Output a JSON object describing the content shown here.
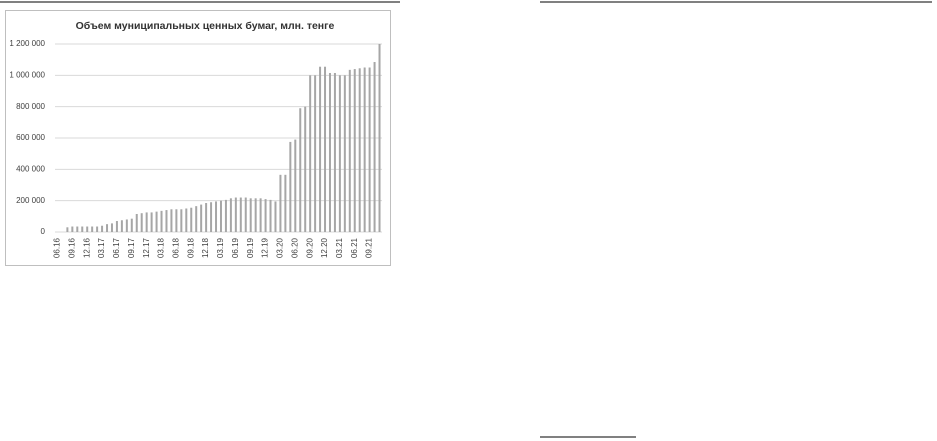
{
  "chart_data": {
    "type": "bar",
    "title": "Объем муниципальных ценных бумаг, млн. тенге",
    "categories": [
      "06.16",
      null,
      null,
      "09.16",
      null,
      null,
      "12.16",
      null,
      null,
      "03.17",
      null,
      null,
      "06.17",
      null,
      null,
      "09.17",
      null,
      null,
      "12.17",
      null,
      null,
      "03.18",
      null,
      null,
      "06.18",
      null,
      null,
      "09.18",
      null,
      null,
      "12.18",
      null,
      null,
      "03.19",
      null,
      null,
      "06.19",
      null,
      null,
      "09.19",
      null,
      null,
      "12.19",
      null,
      null,
      "03.20",
      null,
      null,
      "06.20",
      null,
      null,
      "09.20",
      null,
      null,
      "12.20",
      null,
      null,
      "03.21",
      null,
      null,
      "06.21",
      null,
      null,
      "09.21",
      null,
      null
    ],
    "values": [
      0,
      0,
      30000,
      35000,
      35000,
      35000,
      35000,
      35000,
      35000,
      40000,
      50000,
      55000,
      70000,
      75000,
      80000,
      85000,
      115000,
      120000,
      125000,
      125000,
      130000,
      135000,
      140000,
      145000,
      145000,
      145000,
      150000,
      155000,
      165000,
      175000,
      185000,
      190000,
      195000,
      200000,
      205000,
      215000,
      220000,
      220000,
      220000,
      215000,
      215000,
      215000,
      210000,
      205000,
      195000,
      365000,
      365000,
      575000,
      590000,
      790000,
      800000,
      1000000,
      1000000,
      1055000,
      1055000,
      1015000,
      1015000,
      1000000,
      1000000,
      1035000,
      1040000,
      1045000,
      1050000,
      1050000,
      1085000,
      1200000
    ],
    "color": "#a6a6a6",
    "ylim": [
      0,
      1200000
    ],
    "yticks": [
      0,
      {
        "value": 200000,
        "label": "200 000"
      },
      {
        "value": 400000,
        "label": "400 000"
      },
      {
        "value": 600000,
        "label": "600 000"
      },
      {
        "value": 800000,
        "label": "800 000"
      },
      {
        "value": 1000000,
        "label": "1 000 000"
      },
      {
        "value": 1200000,
        "label": "1 200 000"
      }
    ],
    "grid": true
  }
}
